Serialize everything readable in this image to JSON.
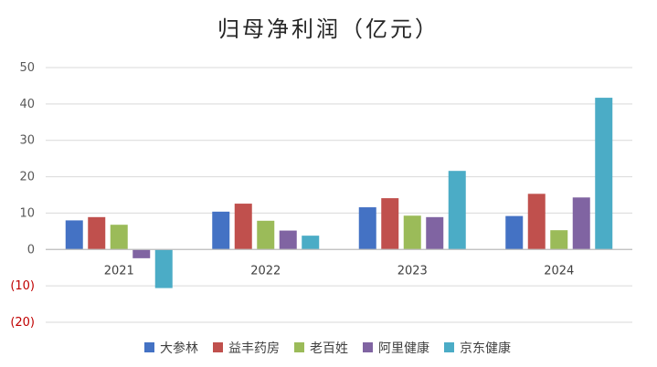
{
  "chart_data": {
    "type": "bar",
    "title": "归母净利润（亿元）",
    "categories": [
      "2021",
      "2022",
      "2023",
      "2024"
    ],
    "series": [
      {
        "name": "大参林",
        "color": "#4472c4",
        "values": [
          8.0,
          10.4,
          11.6,
          9.2
        ]
      },
      {
        "name": "益丰药房",
        "color": "#c0504d",
        "values": [
          8.9,
          12.6,
          14.1,
          15.3
        ]
      },
      {
        "name": "老百姓",
        "color": "#9bbb59",
        "values": [
          6.8,
          7.9,
          9.3,
          5.3
        ]
      },
      {
        "name": "阿里健康",
        "color": "#8064a2",
        "values": [
          -2.4,
          5.2,
          8.9,
          14.3
        ]
      },
      {
        "name": "京东健康",
        "color": "#4bacc6",
        "values": [
          -10.6,
          3.8,
          21.6,
          41.7
        ]
      }
    ],
    "ylim": [
      -20,
      50
    ],
    "yticks": [
      {
        "value": 50,
        "label": "50"
      },
      {
        "value": 40,
        "label": "40"
      },
      {
        "value": 30,
        "label": "30"
      },
      {
        "value": 20,
        "label": "20"
      },
      {
        "value": 10,
        "label": "10"
      },
      {
        "value": 0,
        "label": "0"
      },
      {
        "value": -10,
        "label": "(10)"
      },
      {
        "value": -20,
        "label": "(20)"
      }
    ],
    "negative_tick_color": "#c00000",
    "grid": true,
    "legend_position": "bottom"
  }
}
